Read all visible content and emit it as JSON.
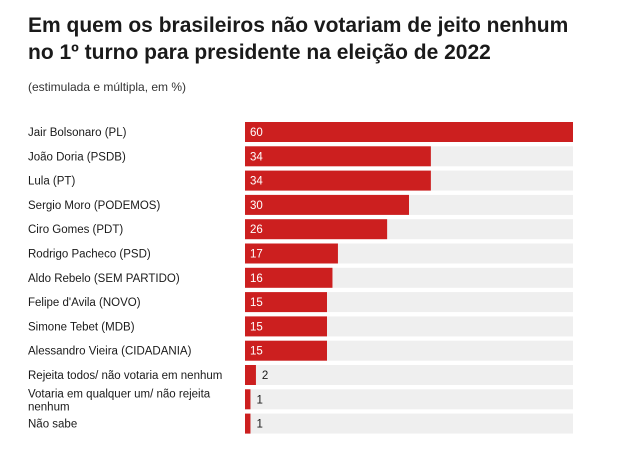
{
  "header": {
    "title": "Em quem os brasileiros não votariam de jeito nenhum no 1º turno para presidente na eleição de 2022",
    "subtitle": "(estimulada e múltipla, em %)"
  },
  "colors": {
    "bar": "#cc1f1f",
    "track": "#efefef"
  },
  "chart_data": {
    "type": "bar",
    "orientation": "horizontal",
    "title": "Em quem os brasileiros não votariam de jeito nenhum no 1º turno para presidente na eleição de 2022",
    "subtitle": "(estimulada e múltipla, em %)",
    "categories": [
      [
        "Jair Bolsonaro (PL)"
      ],
      [
        "João Doria (PSDB)"
      ],
      [
        "Lula (PT)"
      ],
      [
        "Sergio Moro (PODEMOS)"
      ],
      [
        "Ciro Gomes (PDT)"
      ],
      [
        "Rodrigo Pacheco (PSD)"
      ],
      [
        "Aldo Rebelo (SEM PARTIDO)"
      ],
      [
        "Felipe d'Avila (NOVO)"
      ],
      [
        "Simone Tebet (MDB)"
      ],
      [
        "Alessandro Vieira (CIDADANIA)"
      ],
      [
        "Rejeita todos/ não votaria em nenhum"
      ],
      [
        "Votaria em qualquer um/ não rejeita",
        "nenhum"
      ],
      [
        "Não sabe"
      ]
    ],
    "values": [
      60,
      34,
      34,
      30,
      26,
      17,
      16,
      15,
      15,
      15,
      2,
      1,
      1
    ],
    "xlim": [
      0,
      60
    ],
    "grid": false,
    "legend": "none"
  }
}
